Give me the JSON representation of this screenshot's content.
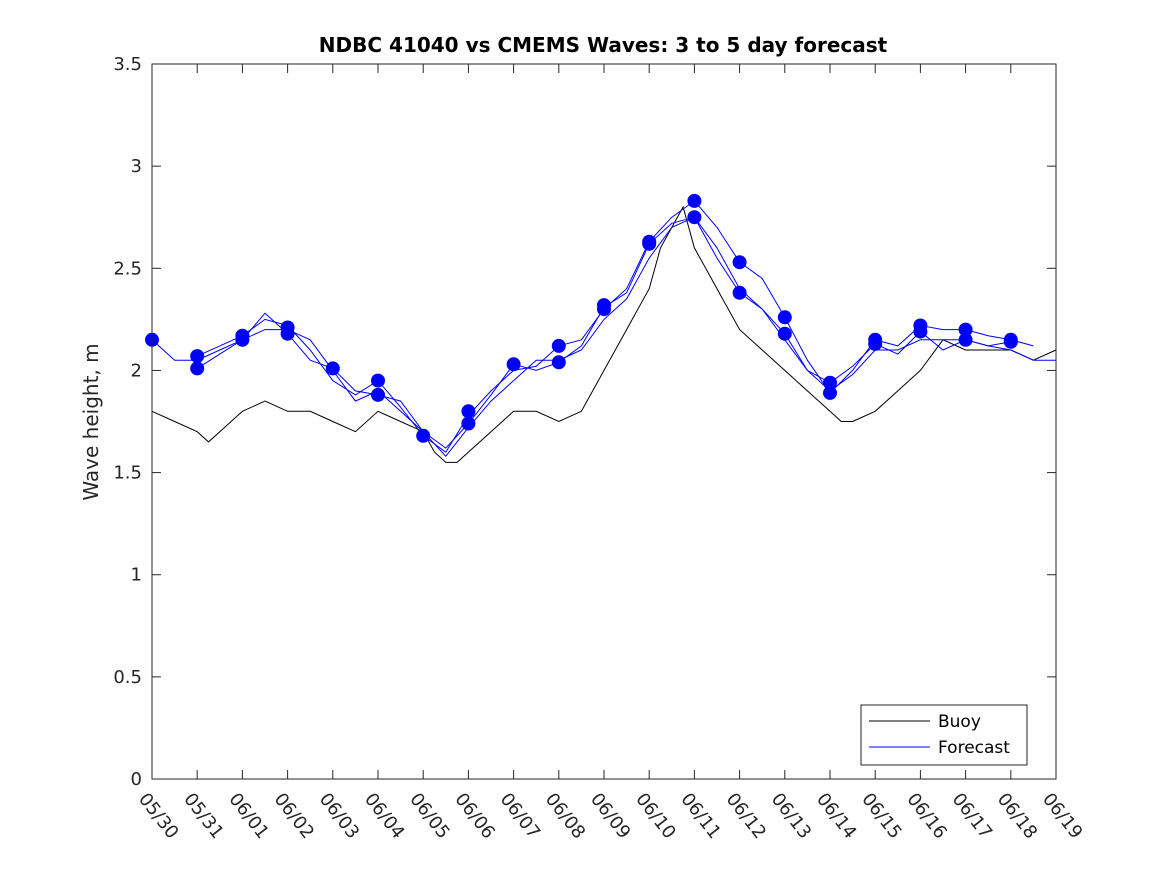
{
  "chart_data": {
    "type": "line",
    "title": "NDBC 41040 vs CMEMS Waves: 3 to 5 day forecast",
    "xlabel": "",
    "ylabel": "Wave height, m",
    "x_ticks": [
      "05/30",
      "05/31",
      "06/01",
      "06/02",
      "06/03",
      "06/04",
      "06/05",
      "06/06",
      "06/07",
      "06/08",
      "06/09",
      "06/10",
      "06/11",
      "06/12",
      "06/13",
      "06/14",
      "06/15",
      "06/16",
      "06/17",
      "06/18",
      "06/19"
    ],
    "y_ticks": [
      "0",
      "0.5",
      "1",
      "1.5",
      "2",
      "2.5",
      "3",
      "3.5"
    ],
    "xlim": [
      "05/30",
      "06/19"
    ],
    "ylim": [
      0,
      3.5
    ],
    "grid": false,
    "legend_position": "bottom-right",
    "colors": {
      "buoy": "#000000",
      "forecast": "#0000ff"
    },
    "legend": [
      {
        "label": "Buoy",
        "color": "#000000"
      },
      {
        "label": "Forecast",
        "color": "#0000ff"
      }
    ],
    "buoy": {
      "name": "Buoy",
      "x": [
        "05/30 00:00",
        "05/30 12:00",
        "05/31 00:00",
        "05/31 06:00",
        "05/31 12:00",
        "06/01 00:00",
        "06/01 12:00",
        "06/02 00:00",
        "06/02 12:00",
        "06/03 00:00",
        "06/03 12:00",
        "06/04 00:00",
        "06/04 12:00",
        "06/05 00:00",
        "06/05 06:00",
        "06/05 12:00",
        "06/05 18:00",
        "06/06 00:00",
        "06/06 12:00",
        "06/07 00:00",
        "06/07 12:00",
        "06/08 00:00",
        "06/08 12:00",
        "06/09 00:00",
        "06/09 12:00",
        "06/10 00:00",
        "06/10 06:00",
        "06/10 12:00",
        "06/10 18:00",
        "06/11 00:00",
        "06/11 06:00",
        "06/11 12:00",
        "06/12 00:00",
        "06/12 12:00",
        "06/13 00:00",
        "06/13 12:00",
        "06/14 00:00",
        "06/14 06:00",
        "06/14 12:00",
        "06/15 00:00",
        "06/15 12:00",
        "06/16 00:00",
        "06/16 12:00",
        "06/17 00:00",
        "06/17 12:00",
        "06/18 00:00",
        "06/18 12:00",
        "06/19 00:00"
      ],
      "y": [
        1.8,
        1.75,
        1.7,
        1.65,
        1.7,
        1.8,
        1.85,
        1.8,
        1.8,
        1.75,
        1.7,
        1.8,
        1.75,
        1.7,
        1.6,
        1.55,
        1.55,
        1.6,
        1.7,
        1.8,
        1.8,
        1.75,
        1.8,
        2.0,
        2.2,
        2.4,
        2.6,
        2.7,
        2.8,
        2.6,
        2.5,
        2.4,
        2.2,
        2.1,
        2.0,
        1.9,
        1.8,
        1.75,
        1.75,
        1.8,
        1.9,
        2.0,
        2.15,
        2.1,
        2.1,
        2.1,
        2.05,
        2.1
      ]
    },
    "forecast_series": [
      {
        "name": "Forecast",
        "x": [
          "05/30 00:00",
          "05/30 12:00",
          "05/31 00:00",
          "05/31 12:00",
          "06/01 00:00",
          "06/01 12:00",
          "06/02 00:00",
          "06/02 12:00",
          "06/03 00:00",
          "06/03 12:00",
          "06/04 00:00",
          "06/04 12:00",
          "06/05 00:00",
          "06/05 12:00",
          "06/06 00:00",
          "06/06 12:00",
          "06/07 00:00",
          "06/07 12:00",
          "06/08 00:00",
          "06/08 12:00",
          "06/09 00:00",
          "06/09 12:00",
          "06/10 00:00",
          "06/10 12:00",
          "06/11 00:00",
          "06/11 12:00",
          "06/12 00:00",
          "06/12 12:00",
          "06/13 00:00",
          "06/13 12:00",
          "06/14 00:00",
          "06/14 12:00",
          "06/15 00:00",
          "06/15 12:00",
          "06/16 00:00",
          "06/16 12:00",
          "06/17 00:00",
          "06/17 12:00",
          "06/18 00:00",
          "06/18 12:00",
          "06/19 00:00"
        ],
        "y": [
          2.15,
          2.05,
          2.05,
          2.1,
          2.15,
          2.2,
          2.2,
          2.15,
          2.0,
          1.85,
          1.9,
          1.8,
          1.7,
          1.58,
          1.72,
          1.85,
          1.95,
          2.05,
          2.05,
          2.1,
          2.25,
          2.35,
          2.55,
          2.7,
          2.75,
          2.6,
          2.4,
          2.3,
          2.15,
          2.0,
          1.9,
          1.98,
          2.1,
          2.1,
          2.15,
          2.15,
          2.15,
          2.12,
          2.1,
          2.05,
          2.05
        ]
      },
      {
        "name": "Forecast",
        "x": [
          "05/31 00:00",
          "05/31 12:00",
          "06/01 00:00",
          "06/01 12:00",
          "06/02 00:00",
          "06/02 12:00",
          "06/03 00:00",
          "06/03 12:00",
          "06/04 00:00",
          "06/04 12:00",
          "06/05 00:00",
          "06/05 12:00",
          "06/06 00:00",
          "06/06 12:00",
          "06/07 00:00",
          "06/07 12:00",
          "06/08 00:00",
          "06/08 12:00",
          "06/09 00:00",
          "06/09 12:00",
          "06/10 00:00",
          "06/10 12:00",
          "06/11 00:00",
          "06/11 12:00",
          "06/12 00:00",
          "06/12 12:00",
          "06/13 00:00",
          "06/13 12:00",
          "06/14 00:00",
          "06/14 12:00",
          "06/15 00:00",
          "06/15 12:00",
          "06/16 00:00",
          "06/16 12:00",
          "06/17 00:00",
          "06/17 12:00",
          "06/18 00:00",
          "06/18 12:00"
        ],
        "y": [
          2.07,
          2.12,
          2.17,
          2.25,
          2.22,
          2.1,
          1.95,
          1.88,
          1.95,
          1.82,
          1.68,
          1.6,
          1.78,
          1.9,
          2.0,
          2.02,
          2.12,
          2.15,
          2.3,
          2.4,
          2.63,
          2.75,
          2.83,
          2.7,
          2.53,
          2.45,
          2.26,
          2.05,
          1.89,
          2.0,
          2.15,
          2.12,
          2.22,
          2.2,
          2.2,
          2.17,
          2.15,
          2.12
        ]
      },
      {
        "name": "Forecast",
        "x": [
          "05/31 00:00",
          "05/31 12:00",
          "06/01 00:00",
          "06/01 12:00",
          "06/02 00:00",
          "06/02 12:00",
          "06/03 00:00",
          "06/03 12:00",
          "06/04 00:00",
          "06/04 12:00",
          "06/05 00:00",
          "06/05 12:00",
          "06/06 00:00",
          "06/06 12:00",
          "06/07 00:00",
          "06/07 12:00",
          "06/08 00:00",
          "06/08 12:00",
          "06/09 00:00",
          "06/09 12:00",
          "06/10 00:00",
          "06/10 12:00",
          "06/11 00:00",
          "06/11 12:00",
          "06/12 00:00",
          "06/12 12:00",
          "06/13 00:00",
          "06/13 12:00",
          "06/14 00:00",
          "06/14 12:00",
          "06/15 00:00",
          "06/15 12:00",
          "06/16 00:00",
          "06/16 12:00",
          "06/17 00:00",
          "06/17 12:00",
          "06/18 00:00"
        ],
        "y": [
          2.01,
          2.08,
          2.15,
          2.28,
          2.18,
          2.05,
          2.01,
          1.9,
          1.88,
          1.85,
          1.7,
          1.62,
          1.74,
          1.88,
          2.03,
          2.0,
          2.04,
          2.12,
          2.31,
          2.38,
          2.62,
          2.72,
          2.75,
          2.55,
          2.38,
          2.3,
          2.18,
          2.0,
          1.94,
          2.02,
          2.13,
          2.08,
          2.19,
          2.1,
          2.15,
          2.12,
          2.14
        ]
      }
    ],
    "forecast_markers": {
      "x": [
        "05/30 00:00",
        "05/31 00:00",
        "05/31 00:00",
        "06/01 00:00",
        "06/01 00:00",
        "06/02 00:00",
        "06/02 00:00",
        "06/03 00:00",
        "06/04 00:00",
        "06/04 00:00",
        "06/05 00:00",
        "06/06 00:00",
        "06/06 00:00",
        "06/07 00:00",
        "06/08 00:00",
        "06/08 00:00",
        "06/09 00:00",
        "06/09 00:00",
        "06/10 00:00",
        "06/10 00:00",
        "06/11 00:00",
        "06/11 00:00",
        "06/12 00:00",
        "06/12 00:00",
        "06/13 00:00",
        "06/13 00:00",
        "06/14 00:00",
        "06/14 00:00",
        "06/15 00:00",
        "06/15 00:00",
        "06/16 00:00",
        "06/16 00:00",
        "06/17 00:00",
        "06/17 00:00",
        "06/18 00:00",
        "06/18 00:00"
      ],
      "y": [
        2.15,
        2.07,
        2.01,
        2.17,
        2.15,
        2.21,
        2.18,
        2.01,
        1.95,
        1.88,
        1.68,
        1.8,
        1.74,
        2.03,
        2.12,
        2.04,
        2.32,
        2.3,
        2.63,
        2.62,
        2.83,
        2.75,
        2.53,
        2.38,
        2.26,
        2.18,
        1.94,
        1.89,
        2.15,
        2.13,
        2.22,
        2.19,
        2.2,
        2.15,
        2.15,
        2.14
      ]
    }
  }
}
